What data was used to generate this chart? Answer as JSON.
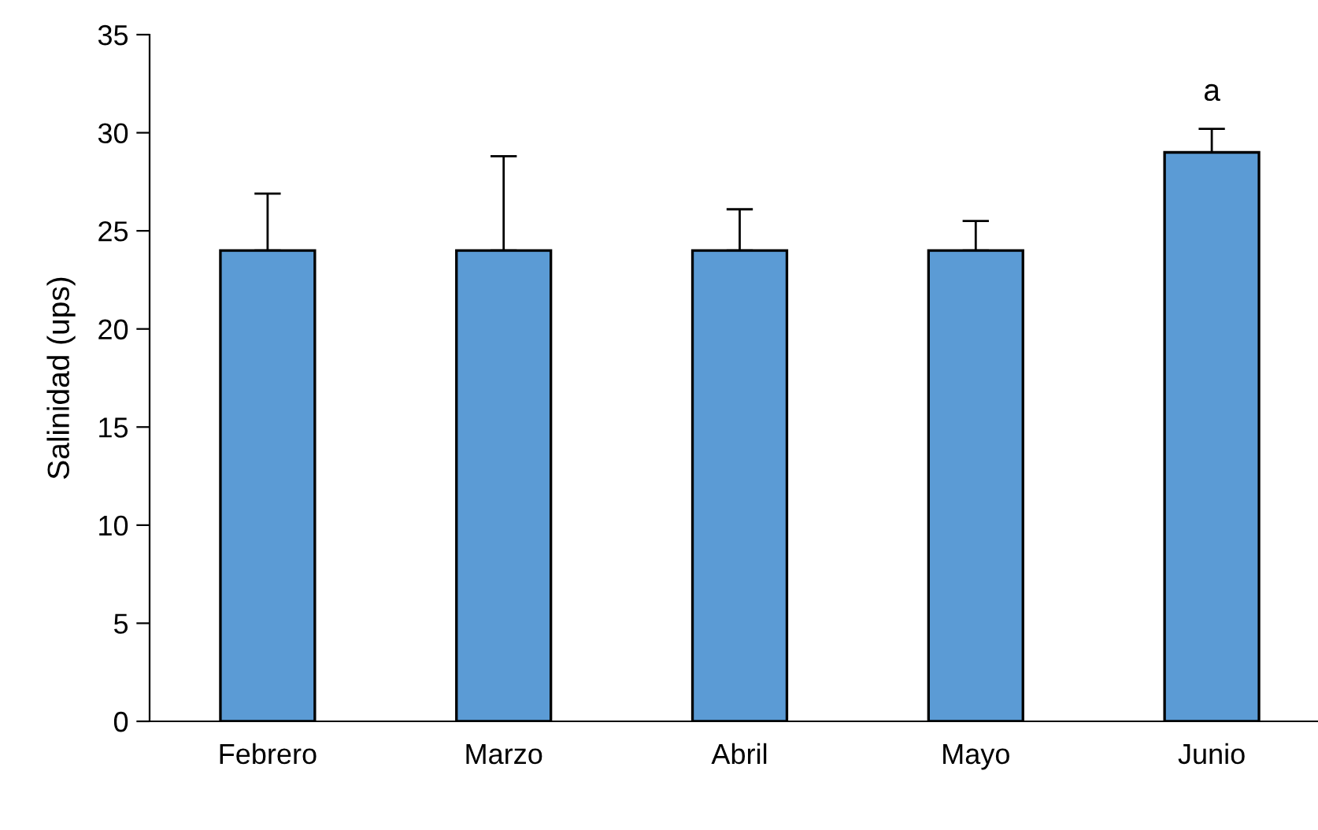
{
  "chart_data": {
    "type": "bar",
    "ylabel": "Salinidad (ups)",
    "categories": [
      "Febrero",
      "Marzo",
      "Abril",
      "Mayo",
      "Junio"
    ],
    "values": [
      24,
      24,
      24,
      24,
      29.0
    ],
    "errors": [
      [
        24,
        26.9
      ],
      [
        24,
        28.8
      ],
      [
        24,
        26.1
      ],
      [
        24,
        25.5
      ],
      [
        29.0,
        30.2
      ]
    ],
    "color": "#5b9bd5",
    "annotations": [
      "a"
    ],
    "ylim": [
      0,
      35
    ],
    "yticks": [
      0,
      5,
      10,
      15,
      20,
      25,
      30,
      35
    ],
    "grid": false
  }
}
